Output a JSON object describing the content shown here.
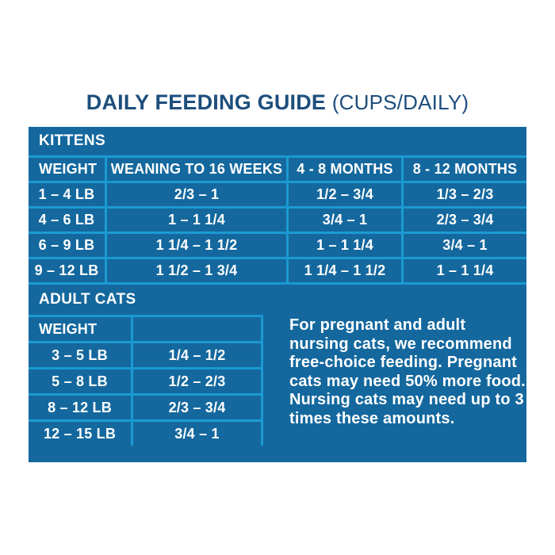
{
  "title": {
    "main": "DAILY FEEDING GUIDE ",
    "suffix": "(CUPS/DAILY)"
  },
  "colors": {
    "panel_blue": "#14689e",
    "grid_blue": "#1b9ad2",
    "title_navy": "#1d4e7c",
    "text_white": "#ffffff"
  },
  "kittens": {
    "label": "KITTENS",
    "headers": [
      "WEIGHT",
      "WEANING TO 16 WEEKS",
      "4 - 8 MONTHS",
      "8 - 12 MONTHS"
    ],
    "rows": [
      [
        "1 – 4 LB",
        "2/3 – 1",
        "1/2 – 3/4",
        "1/3 – 2/3"
      ],
      [
        "4 – 6 LB",
        "1 – 1 1/4",
        "3/4 – 1",
        "2/3 – 3/4"
      ],
      [
        "6 – 9 LB",
        "1 1/4 – 1 1/2",
        "1 – 1 1/4",
        "3/4 – 1"
      ],
      [
        "9 – 12 LB",
        "1 1/2 – 1 3/4",
        "1 1/4 – 1 1/2",
        "1 – 1 1/4"
      ]
    ]
  },
  "adult": {
    "label": "ADULT CATS",
    "headers": [
      "WEIGHT",
      ""
    ],
    "rows": [
      [
        "3 – 5 LB",
        "1/4 – 1/2"
      ],
      [
        "5 – 8 LB",
        "1/2 – 2/3"
      ],
      [
        "8 – 12 LB",
        "2/3 – 3/4"
      ],
      [
        "12 – 15 LB",
        "3/4 – 1"
      ]
    ]
  },
  "note": "For pregnant and adult nursing cats, we recommend free-choice feeding. Pregnant cats may need 50% more food. Nursing cats may need up to 3 times these amounts."
}
